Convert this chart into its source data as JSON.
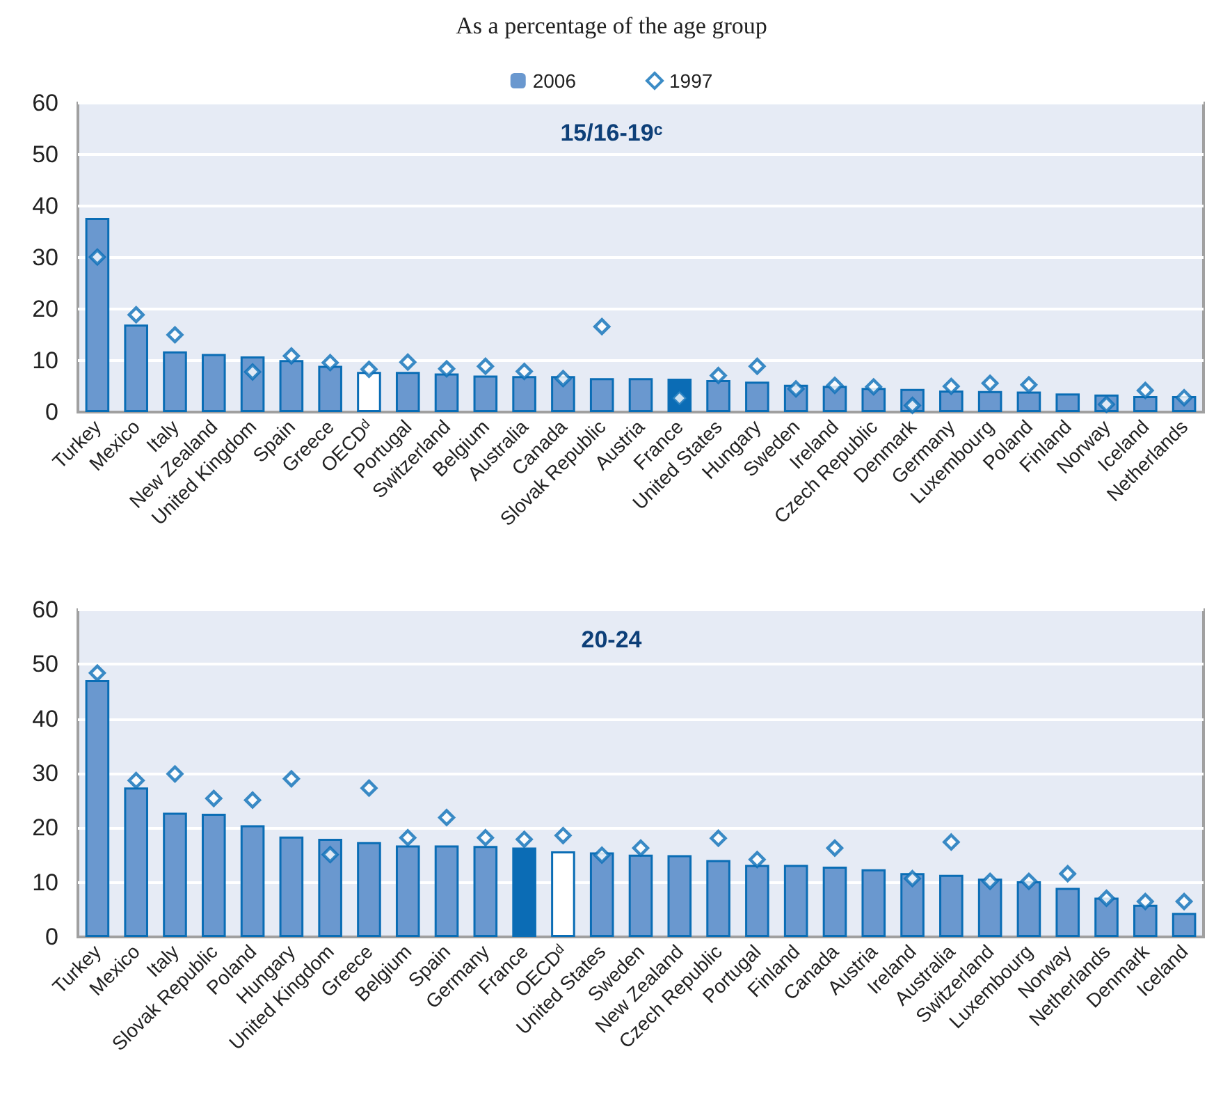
{
  "chart_data": [
    {
      "type": "bar",
      "title": "15/16-19ᶜ",
      "annotations": [
        "As a percentage of the age group"
      ],
      "categories": [
        "Turkey",
        "Mexico",
        "Italy",
        "New Zealand",
        "United Kingdom",
        "Spain",
        "Greece",
        "OECDᵈ",
        "Portugal",
        "Switzerland",
        "Belgium",
        "Australia",
        "Canada",
        "Slovak Republic",
        "Austria",
        "France",
        "United States",
        "Hungary",
        "Sweden",
        "Ireland",
        "Czech Republic",
        "Denmark",
        "Germany",
        "Luxembourg",
        "Poland",
        "Finland",
        "Norway",
        "Iceland",
        "Netherlands"
      ],
      "series": [
        {
          "name": "2006",
          "type": "bar",
          "color": "#6a98cf",
          "colors": [
            "#6a98cf",
            "#6a98cf",
            "#6a98cf",
            "#6a98cf",
            "#6a98cf",
            "#6a98cf",
            "#6a98cf",
            "#ffffff",
            "#6a98cf",
            "#6a98cf",
            "#6a98cf",
            "#6a98cf",
            "#6a98cf",
            "#6a98cf",
            "#6a98cf",
            "#0b6cb5",
            "#6a98cf",
            "#6a98cf",
            "#6a98cf",
            "#6a98cf",
            "#6a98cf",
            "#6a98cf",
            "#6a98cf",
            "#6a98cf",
            "#6a98cf",
            "#6a98cf",
            "#6a98cf",
            "#6a98cf",
            "#6a98cf"
          ],
          "values": [
            37.7,
            17.0,
            11.8,
            11.3,
            10.8,
            10.1,
            9.0,
            7.8,
            7.8,
            7.5,
            7.1,
            7.0,
            7.0,
            6.6,
            6.6,
            6.5,
            6.2,
            5.9,
            5.3,
            5.1,
            4.7,
            4.5,
            4.2,
            4.1,
            4.0,
            3.6,
            3.4,
            3.1,
            3.1
          ]
        },
        {
          "name": "1997",
          "type": "scatter",
          "color": "#0b6fb8",
          "values": [
            30.1,
            18.9,
            15.0,
            null,
            7.8,
            10.9,
            9.6,
            8.3,
            9.7,
            8.4,
            8.9,
            7.9,
            6.5,
            16.6,
            null,
            2.7,
            7.1,
            8.9,
            4.5,
            5.2,
            4.9,
            1.3,
            5.0,
            5.6,
            5.3,
            null,
            1.5,
            4.2,
            2.8
          ]
        }
      ],
      "ylim": [
        0,
        60
      ],
      "yticks": [
        0,
        10,
        20,
        30,
        40,
        50,
        60
      ],
      "grid": "y",
      "legend": "top",
      "marker": "diamond"
    },
    {
      "type": "bar",
      "title": "20-24",
      "categories": [
        "Turkey",
        "Mexico",
        "Italy",
        "Slovak Republic",
        "Poland",
        "Hungary",
        "United Kingdom",
        "Greece",
        "Belgium",
        "Spain",
        "Germany",
        "France",
        "OECDᵈ",
        "United States",
        "Sweden",
        "New Zealand",
        "Czech Republic",
        "Portugal",
        "Finland",
        "Canada",
        "Austria",
        "Ireland",
        "Australia",
        "Switzerland",
        "Luxembourg",
        "Norway",
        "Netherlands",
        "Denmark",
        "Iceland"
      ],
      "series": [
        {
          "type": "bar",
          "color": "#6a98cf",
          "colors": [
            "#6a98cf",
            "#6a98cf",
            "#6a98cf",
            "#6a98cf",
            "#6a98cf",
            "#6a98cf",
            "#6a98cf",
            "#6a98cf",
            "#6a98cf",
            "#6a98cf",
            "#6a98cf",
            "#0b6cb5",
            "#ffffff",
            "#6a98cf",
            "#6a98cf",
            "#6a98cf",
            "#6a98cf",
            "#6a98cf",
            "#6a98cf",
            "#6a98cf",
            "#6a98cf",
            "#6a98cf",
            "#6a98cf",
            "#6a98cf",
            "#6a98cf",
            "#6a98cf",
            "#6a98cf",
            "#6a98cf",
            "#6a98cf"
          ],
          "values": [
            47.1,
            27.4,
            22.8,
            22.6,
            20.5,
            18.4,
            18.0,
            17.4,
            16.8,
            16.8,
            16.7,
            16.4,
            15.7,
            15.5,
            15.1,
            15.0,
            14.1,
            13.2,
            13.2,
            12.9,
            12.4,
            11.7,
            11.4,
            10.7,
            10.2,
            9.0,
            7.2,
            5.9,
            4.4
          ]
        },
        {
          "type": "scatter",
          "color": "#0b6fb8",
          "values": [
            48.4,
            28.7,
            29.9,
            25.4,
            25.1,
            29.0,
            15.1,
            27.3,
            18.2,
            21.9,
            18.2,
            17.9,
            18.6,
            15.0,
            16.3,
            null,
            18.1,
            14.2,
            null,
            16.3,
            null,
            10.7,
            17.4,
            10.2,
            10.2,
            11.6,
            7.1,
            6.5,
            6.5
          ]
        }
      ],
      "ylim": [
        0,
        60
      ],
      "yticks": [
        0,
        10,
        20,
        30,
        40,
        50,
        60
      ],
      "grid": "y",
      "legend": false,
      "marker": "diamond"
    }
  ]
}
